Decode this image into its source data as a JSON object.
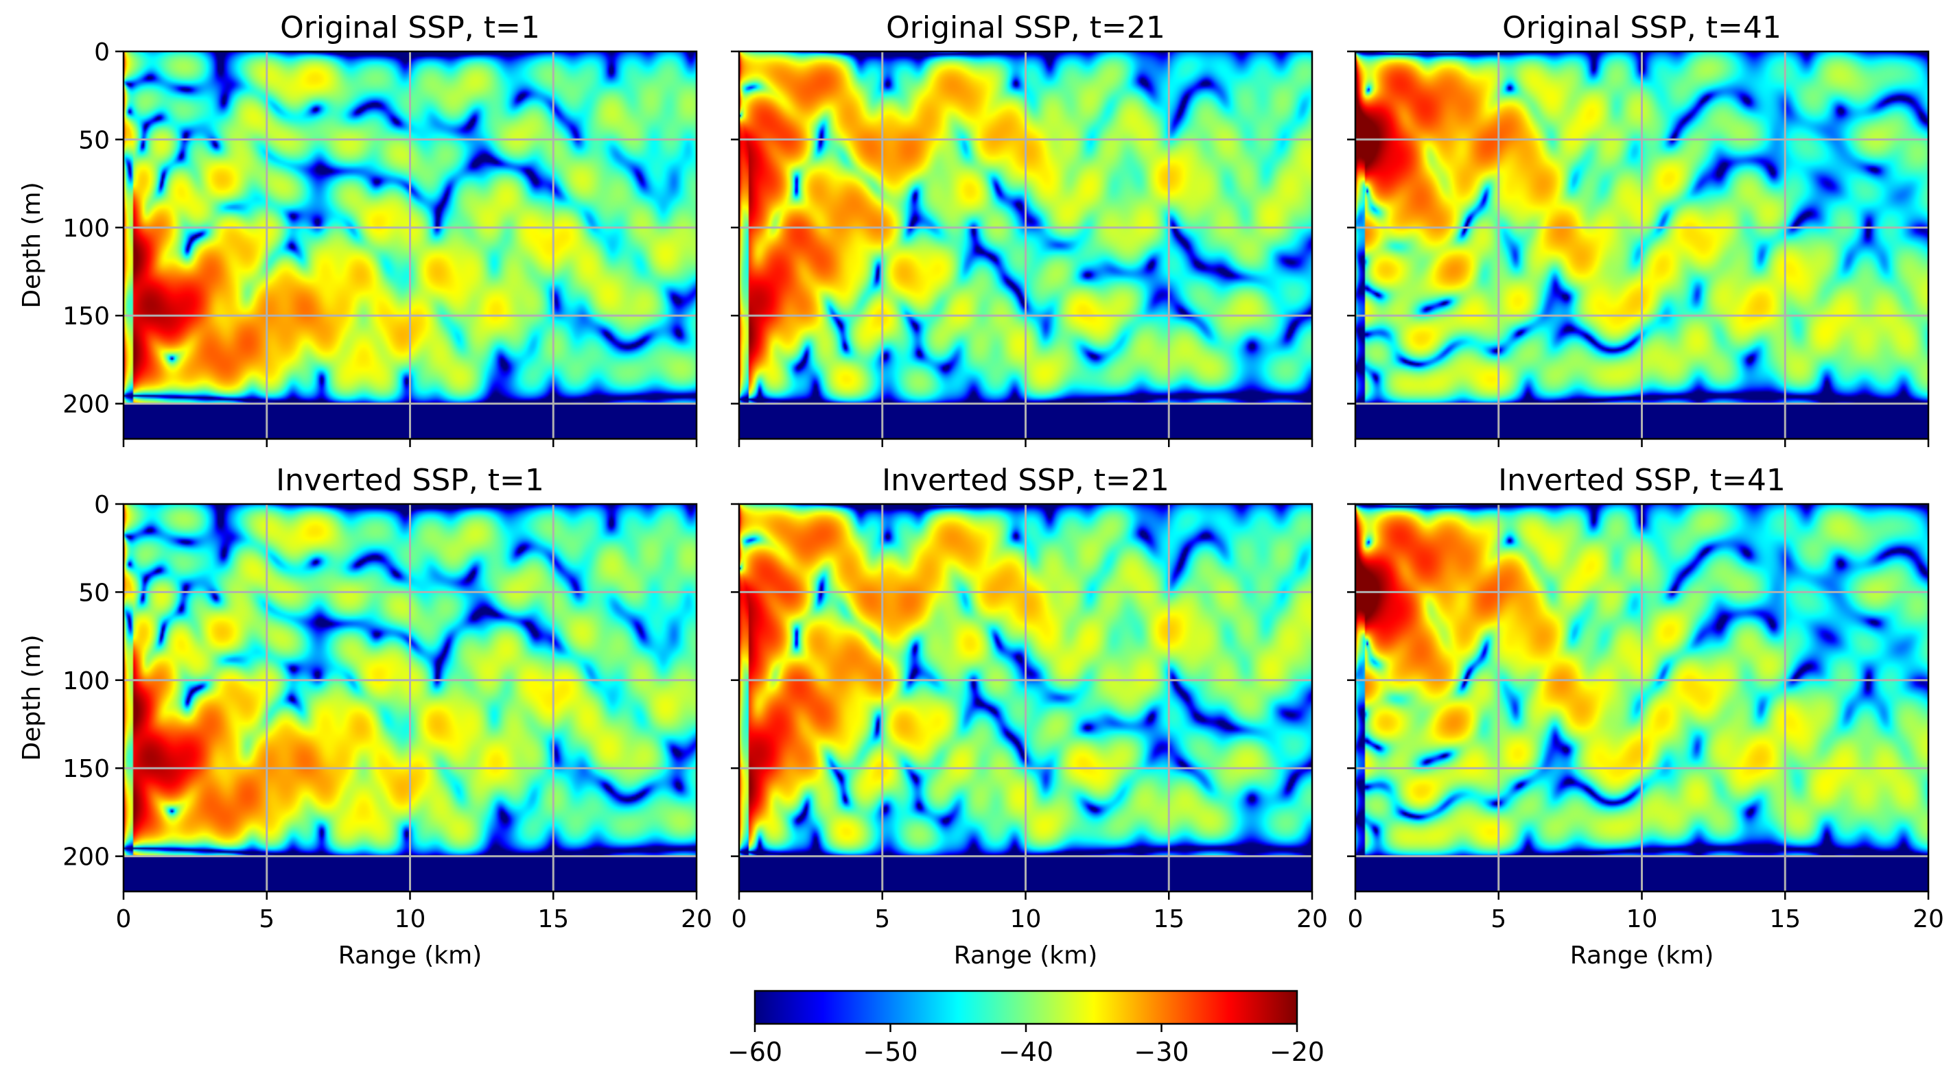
{
  "figure": {
    "colormap": "jet",
    "colormap_stops": [
      "#00007f",
      "#0000ff",
      "#007fff",
      "#00ffff",
      "#7fff7f",
      "#ffff00",
      "#ff7f00",
      "#ff0000",
      "#7f0000"
    ],
    "grid_color": "#b0b0b0",
    "seabed_color": "#00007f"
  },
  "chart_data": [
    {
      "type": "heatmap",
      "title": "Original SSP, t=1",
      "xlabel": "",
      "ylabel": "Depth (m)",
      "xlim": [
        0,
        20
      ],
      "ylim": [
        220,
        0
      ],
      "xticks": [
        0,
        5,
        10,
        15,
        20
      ],
      "yticks": [
        0,
        50,
        100,
        150,
        200
      ],
      "xtick_labels": [],
      "ytick_labels": [
        "0",
        "50",
        "100",
        "150",
        "200"
      ],
      "grid": true,
      "seabed_depth": 200,
      "z_units": "dB",
      "seed": 1
    },
    {
      "type": "heatmap",
      "title": "Original SSP, t=21",
      "xlabel": "",
      "ylabel": "",
      "xlim": [
        0,
        20
      ],
      "ylim": [
        220,
        0
      ],
      "xticks": [
        0,
        5,
        10,
        15,
        20
      ],
      "yticks": [
        0,
        50,
        100,
        150,
        200
      ],
      "xtick_labels": [],
      "ytick_labels": [],
      "grid": true,
      "seabed_depth": 200,
      "z_units": "dB",
      "seed": 21
    },
    {
      "type": "heatmap",
      "title": "Original SSP, t=41",
      "xlabel": "",
      "ylabel": "",
      "xlim": [
        0,
        20
      ],
      "ylim": [
        220,
        0
      ],
      "xticks": [
        0,
        5,
        10,
        15,
        20
      ],
      "yticks": [
        0,
        50,
        100,
        150,
        200
      ],
      "xtick_labels": [],
      "ytick_labels": [],
      "grid": true,
      "seabed_depth": 200,
      "z_units": "dB",
      "seed": 41
    },
    {
      "type": "heatmap",
      "title": "Inverted SSP, t=1",
      "xlabel": "Range (km)",
      "ylabel": "Depth (m)",
      "xlim": [
        0,
        20
      ],
      "ylim": [
        220,
        0
      ],
      "xticks": [
        0,
        5,
        10,
        15,
        20
      ],
      "yticks": [
        0,
        50,
        100,
        150,
        200
      ],
      "xtick_labels": [
        "0",
        "5",
        "10",
        "15",
        "20"
      ],
      "ytick_labels": [
        "0",
        "50",
        "100",
        "150",
        "200"
      ],
      "grid": true,
      "seabed_depth": 200,
      "z_units": "dB",
      "seed": 1
    },
    {
      "type": "heatmap",
      "title": "Inverted SSP, t=21",
      "xlabel": "Range (km)",
      "ylabel": "",
      "xlim": [
        0,
        20
      ],
      "ylim": [
        220,
        0
      ],
      "xticks": [
        0,
        5,
        10,
        15,
        20
      ],
      "yticks": [
        0,
        50,
        100,
        150,
        200
      ],
      "xtick_labels": [
        "0",
        "5",
        "10",
        "15",
        "20"
      ],
      "ytick_labels": [],
      "grid": true,
      "seabed_depth": 200,
      "z_units": "dB",
      "seed": 21
    },
    {
      "type": "heatmap",
      "title": "Inverted SSP, t=41",
      "xlabel": "Range (km)",
      "ylabel": "",
      "xlim": [
        0,
        20
      ],
      "ylim": [
        220,
        0
      ],
      "xticks": [
        0,
        5,
        10,
        15,
        20
      ],
      "yticks": [
        0,
        50,
        100,
        150,
        200
      ],
      "xtick_labels": [
        "0",
        "5",
        "10",
        "15",
        "20"
      ],
      "ytick_labels": [],
      "grid": true,
      "seabed_depth": 200,
      "z_units": "dB",
      "seed": 41
    }
  ],
  "colorbar": {
    "range": [
      -60,
      -20
    ],
    "ticks": [
      -60,
      -50,
      -40,
      -30,
      -20
    ],
    "tick_labels": [
      "−60",
      "−50",
      "−40",
      "−30",
      "−20"
    ],
    "orientation": "horizontal",
    "placement": "bottom-center"
  }
}
